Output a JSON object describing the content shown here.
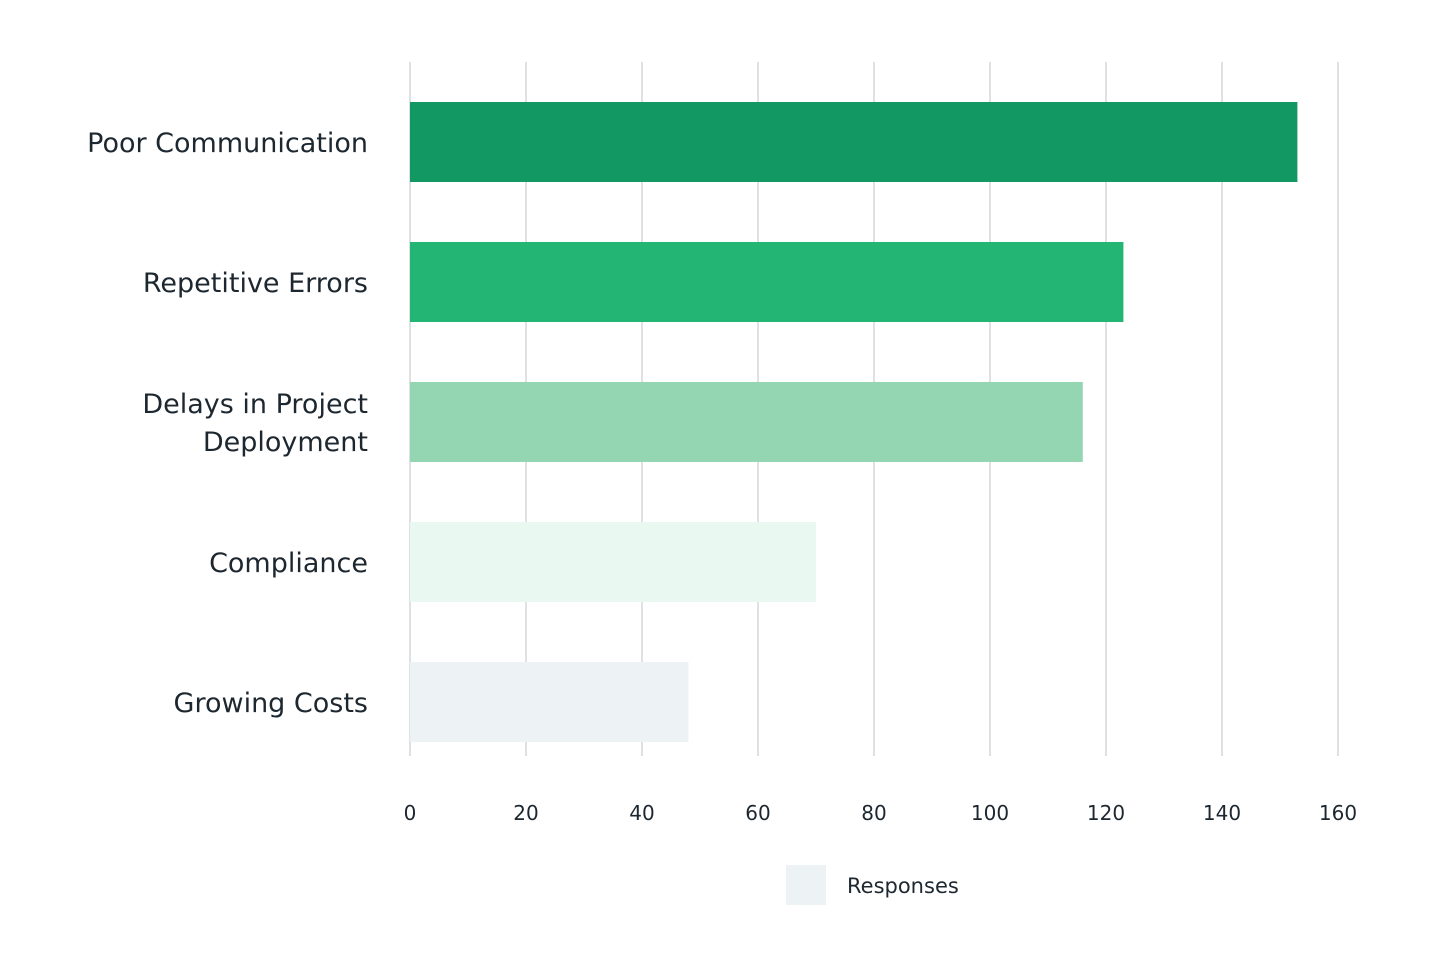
{
  "chart_data": {
    "type": "bar",
    "orientation": "horizontal",
    "categories": [
      [
        "Poor Communication"
      ],
      [
        "Repetitive Errors"
      ],
      [
        "Delays in Project",
        "Deployment"
      ],
      [
        "Compliance"
      ],
      [
        "Growing Costs"
      ]
    ],
    "series": [
      {
        "name": "Responses",
        "values": [
          153,
          123,
          116,
          70,
          48
        ]
      }
    ],
    "bar_colors": [
      "#129963",
      "#22b573",
      "#94d6b1",
      "#eaf8f2",
      "#edf2f4"
    ],
    "legend_color": "#edf2f4",
    "xlim": [
      0,
      160
    ],
    "xticks": [
      0,
      20,
      40,
      60,
      80,
      100,
      120,
      140,
      160
    ],
    "grid": true,
    "legend_position": "bottom-center"
  }
}
